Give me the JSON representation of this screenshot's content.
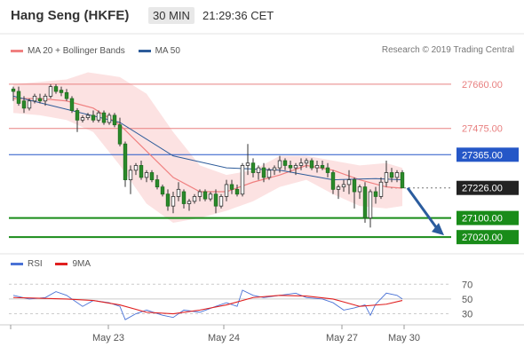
{
  "header": {
    "title": "Hang Seng (HKFE)",
    "timeframe": "30 MIN",
    "time": "21:29:36 CET"
  },
  "legend_main": [
    {
      "label": "MA 20 + Bollinger Bands",
      "color": "#f08080"
    },
    {
      "label": "MA 50",
      "color": "#2e5c9a"
    }
  ],
  "legend_rsi": [
    {
      "label": "RSI",
      "color": "#4a72d6"
    },
    {
      "label": "9MA",
      "color": "#e02020"
    }
  ],
  "copyright": "Research © 2019 Trading Central",
  "levels": [
    {
      "value": 27660.0,
      "label": "27660.00",
      "style": "resistance",
      "color": "#e88080"
    },
    {
      "value": 27475.0,
      "label": "27475.00",
      "style": "resistance",
      "color": "#e88080"
    },
    {
      "value": 27365.0,
      "label": "27365.00",
      "style": "pivot",
      "color": "#2557c7"
    },
    {
      "value": 27226.0,
      "label": "27226.00",
      "style": "last",
      "color": "#222222"
    },
    {
      "value": 27100.0,
      "label": "27100.00",
      "style": "support",
      "color": "#198c19"
    },
    {
      "value": 27020.0,
      "label": "27020.00",
      "style": "support",
      "color": "#198c19"
    }
  ],
  "rsi_ticks": [
    "70",
    "50",
    "30"
  ],
  "chart_data": {
    "type": "candlestick",
    "x_labels": [
      "May 23",
      "May 24",
      "May 27",
      "May 30"
    ],
    "y_range": [
      26950,
      27760
    ],
    "candles": [
      [
        27640,
        27650,
        27590,
        27630
      ],
      [
        27630,
        27650,
        27570,
        27580
      ],
      [
        27590,
        27610,
        27540,
        27560
      ],
      [
        27560,
        27600,
        27550,
        27590
      ],
      [
        27590,
        27620,
        27580,
        27610
      ],
      [
        27600,
        27620,
        27580,
        27590
      ],
      [
        27590,
        27620,
        27570,
        27610
      ],
      [
        27610,
        27660,
        27600,
        27650
      ],
      [
        27650,
        27660,
        27620,
        27630
      ],
      [
        27635,
        27650,
        27610,
        27625
      ],
      [
        27625,
        27640,
        27590,
        27600
      ],
      [
        27600,
        27610,
        27540,
        27550
      ],
      [
        27550,
        27560,
        27460,
        27510
      ],
      [
        27510,
        27530,
        27500,
        27520
      ],
      [
        27520,
        27540,
        27510,
        27530
      ],
      [
        27530,
        27550,
        27500,
        27510
      ],
      [
        27510,
        27550,
        27500,
        27540
      ],
      [
        27540,
        27550,
        27490,
        27500
      ],
      [
        27500,
        27540,
        27490,
        27530
      ],
      [
        27530,
        27540,
        27480,
        27490
      ],
      [
        27490,
        27520,
        27400,
        27410
      ],
      [
        27410,
        27420,
        27230,
        27260
      ],
      [
        27260,
        27320,
        27200,
        27300
      ],
      [
        27300,
        27330,
        27280,
        27320
      ],
      [
        27320,
        27340,
        27260,
        27270
      ],
      [
        27270,
        27300,
        27250,
        27290
      ],
      [
        27290,
        27300,
        27250,
        27260
      ],
      [
        27260,
        27280,
        27220,
        27230
      ],
      [
        27230,
        27240,
        27190,
        27200
      ],
      [
        27200,
        27220,
        27130,
        27150
      ],
      [
        27150,
        27210,
        27120,
        27190
      ],
      [
        27190,
        27250,
        27170,
        27220
      ],
      [
        27210,
        27220,
        27140,
        27160
      ],
      [
        27160,
        27180,
        27130,
        27170
      ],
      [
        27170,
        27200,
        27160,
        27190
      ],
      [
        27190,
        27220,
        27170,
        27210
      ],
      [
        27210,
        27220,
        27170,
        27180
      ],
      [
        27180,
        27210,
        27170,
        27200
      ],
      [
        27200,
        27220,
        27120,
        27150
      ],
      [
        27150,
        27200,
        27140,
        27190
      ],
      [
        27190,
        27260,
        27170,
        27240
      ],
      [
        27240,
        27260,
        27200,
        27220
      ],
      [
        27220,
        27240,
        27190,
        27200
      ],
      [
        27200,
        27330,
        27190,
        27320
      ],
      [
        27320,
        27410,
        27280,
        27330
      ],
      [
        27330,
        27350,
        27270,
        27290
      ],
      [
        27290,
        27320,
        27260,
        27310
      ],
      [
        27310,
        27330,
        27250,
        27270
      ],
      [
        27270,
        27310,
        27260,
        27300
      ],
      [
        27300,
        27320,
        27280,
        27310
      ],
      [
        27310,
        27360,
        27290,
        27340
      ],
      [
        27340,
        27350,
        27300,
        27320
      ],
      [
        27320,
        27340,
        27290,
        27310
      ],
      [
        27310,
        27330,
        27280,
        27320
      ],
      [
        27320,
        27350,
        27300,
        27330
      ],
      [
        27330,
        27350,
        27310,
        27340
      ],
      [
        27340,
        27350,
        27300,
        27310
      ],
      [
        27310,
        27340,
        27290,
        27320
      ],
      [
        27320,
        27340,
        27300,
        27310
      ],
      [
        27310,
        27330,
        27270,
        27290
      ],
      [
        27290,
        27300,
        27200,
        27220
      ],
      [
        27220,
        27240,
        27180,
        27230
      ],
      [
        27230,
        27260,
        27210,
        27240
      ],
      [
        27240,
        27300,
        27200,
        27260
      ],
      [
        27260,
        27270,
        27140,
        27210
      ],
      [
        27210,
        27240,
        27180,
        27230
      ],
      [
        27230,
        27250,
        27080,
        27100
      ],
      [
        27100,
        27220,
        27060,
        27210
      ],
      [
        27210,
        27230,
        27160,
        27190
      ],
      [
        27190,
        27270,
        27180,
        27250
      ],
      [
        27250,
        27340,
        27230,
        27290
      ],
      [
        27290,
        27310,
        27250,
        27270
      ],
      [
        27270,
        27300,
        27250,
        27290
      ],
      [
        27290,
        27300,
        27230,
        27226
      ]
    ],
    "ma50": [
      [
        0,
        27610
      ],
      [
        20,
        27500
      ],
      [
        30,
        27360
      ],
      [
        40,
        27310
      ],
      [
        50,
        27300
      ],
      [
        60,
        27260
      ],
      [
        68,
        27265
      ],
      [
        73,
        27260
      ]
    ],
    "ma20": [
      [
        0,
        27600
      ],
      [
        5,
        27600
      ],
      [
        10,
        27590
      ],
      [
        15,
        27560
      ],
      [
        20,
        27490
      ],
      [
        25,
        27380
      ],
      [
        30,
        27270
      ],
      [
        35,
        27210
      ],
      [
        40,
        27210
      ],
      [
        45,
        27250
      ],
      [
        50,
        27280
      ],
      [
        55,
        27320
      ],
      [
        60,
        27300
      ],
      [
        65,
        27260
      ],
      [
        70,
        27230
      ],
      [
        73,
        27225
      ]
    ],
    "bb_upper": [
      [
        0,
        27660
      ],
      [
        5,
        27670
      ],
      [
        10,
        27680
      ],
      [
        14,
        27710
      ],
      [
        17,
        27700
      ],
      [
        20,
        27690
      ],
      [
        25,
        27620
      ],
      [
        30,
        27460
      ],
      [
        35,
        27320
      ],
      [
        40,
        27280
      ],
      [
        45,
        27300
      ],
      [
        50,
        27360
      ],
      [
        55,
        27360
      ],
      [
        60,
        27340
      ],
      [
        65,
        27320
      ],
      [
        70,
        27330
      ],
      [
        73,
        27310
      ]
    ],
    "bb_lower": [
      [
        0,
        27540
      ],
      [
        5,
        27530
      ],
      [
        10,
        27510
      ],
      [
        15,
        27460
      ],
      [
        20,
        27320
      ],
      [
        25,
        27160
      ],
      [
        30,
        27080
      ],
      [
        35,
        27100
      ],
      [
        40,
        27130
      ],
      [
        45,
        27170
      ],
      [
        50,
        27230
      ],
      [
        55,
        27260
      ],
      [
        60,
        27200
      ],
      [
        65,
        27150
      ],
      [
        70,
        27140
      ],
      [
        73,
        27150
      ]
    ],
    "rsi": [
      [
        0,
        55
      ],
      [
        3,
        50
      ],
      [
        6,
        52
      ],
      [
        8,
        60
      ],
      [
        10,
        55
      ],
      [
        13,
        40
      ],
      [
        15,
        48
      ],
      [
        18,
        45
      ],
      [
        20,
        40
      ],
      [
        21,
        22
      ],
      [
        23,
        30
      ],
      [
        25,
        35
      ],
      [
        28,
        28
      ],
      [
        30,
        25
      ],
      [
        32,
        35
      ],
      [
        35,
        32
      ],
      [
        38,
        40
      ],
      [
        40,
        45
      ],
      [
        42,
        40
      ],
      [
        43,
        62
      ],
      [
        45,
        55
      ],
      [
        47,
        52
      ],
      [
        50,
        55
      ],
      [
        53,
        58
      ],
      [
        55,
        52
      ],
      [
        58,
        50
      ],
      [
        60,
        45
      ],
      [
        62,
        35
      ],
      [
        64,
        38
      ],
      [
        66,
        42
      ],
      [
        67,
        28
      ],
      [
        68,
        43
      ],
      [
        70,
        58
      ],
      [
        72,
        55
      ],
      [
        73,
        50
      ]
    ],
    "rsi_ma": [
      [
        0,
        52
      ],
      [
        5,
        51
      ],
      [
        10,
        50
      ],
      [
        15,
        48
      ],
      [
        20,
        42
      ],
      [
        25,
        32
      ],
      [
        30,
        30
      ],
      [
        35,
        35
      ],
      [
        40,
        42
      ],
      [
        45,
        52
      ],
      [
        50,
        55
      ],
      [
        55,
        54
      ],
      [
        60,
        50
      ],
      [
        65,
        40
      ],
      [
        70,
        43
      ],
      [
        73,
        48
      ]
    ],
    "rsi_range": [
      15,
      80
    ],
    "projection": {
      "from_index": 73,
      "to_value": 27020,
      "direction": "down"
    }
  }
}
